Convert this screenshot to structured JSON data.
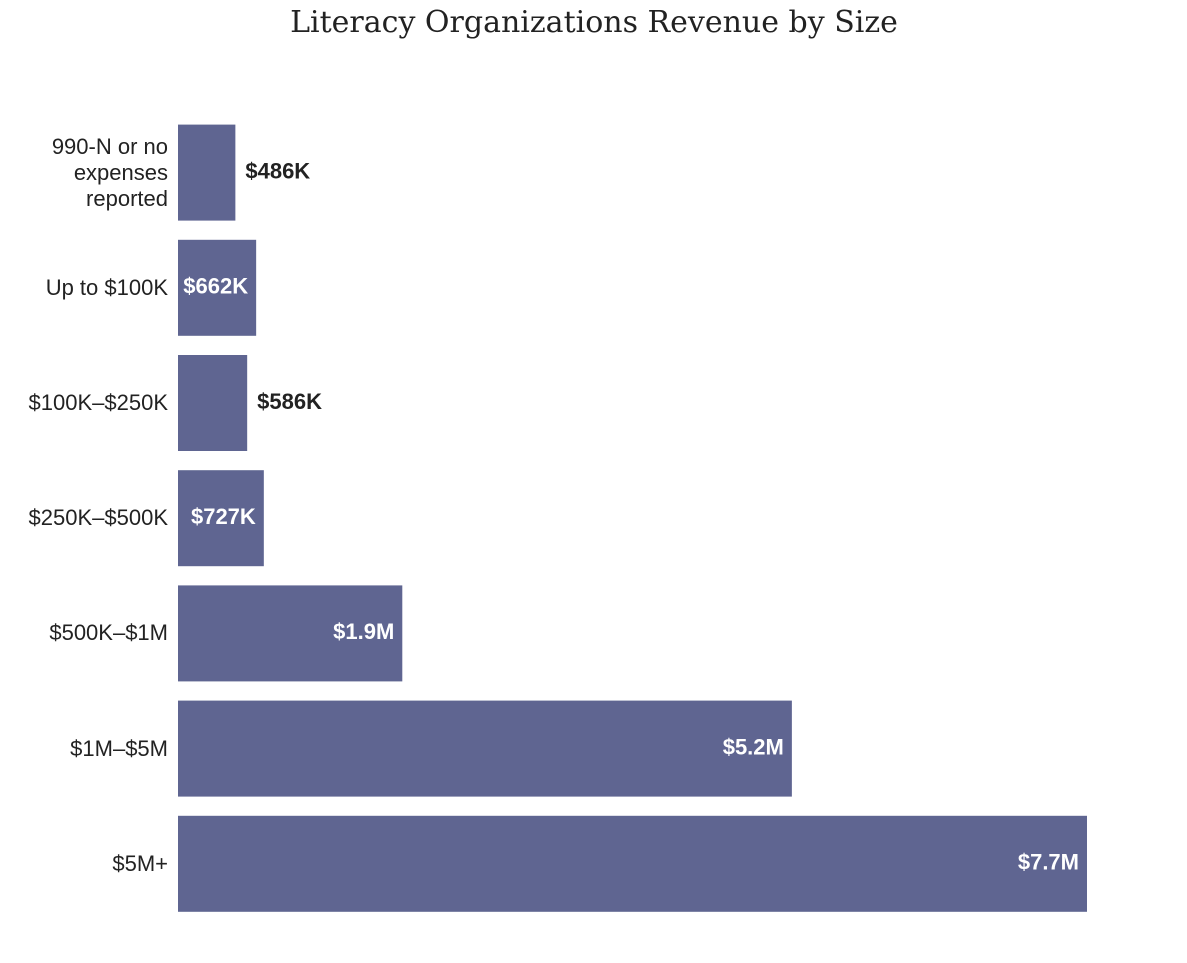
{
  "chart_data": {
    "type": "barh",
    "title": "Literacy Organizations Revenue by Size",
    "categories": [
      "990-N or no expenses reported",
      "Up to $100K",
      "$100K–$250K",
      "$250K–$500K",
      "$500K–$1M",
      "$1M–$5M",
      "$5M+"
    ],
    "values": [
      486000,
      662000,
      586000,
      727000,
      1900000,
      5200000,
      7700000
    ],
    "value_labels": [
      "$486K",
      "$662K",
      "$586K",
      "$727K",
      "$1.9M",
      "$5.2M",
      "$7.7M"
    ],
    "color": "#5f6591"
  }
}
